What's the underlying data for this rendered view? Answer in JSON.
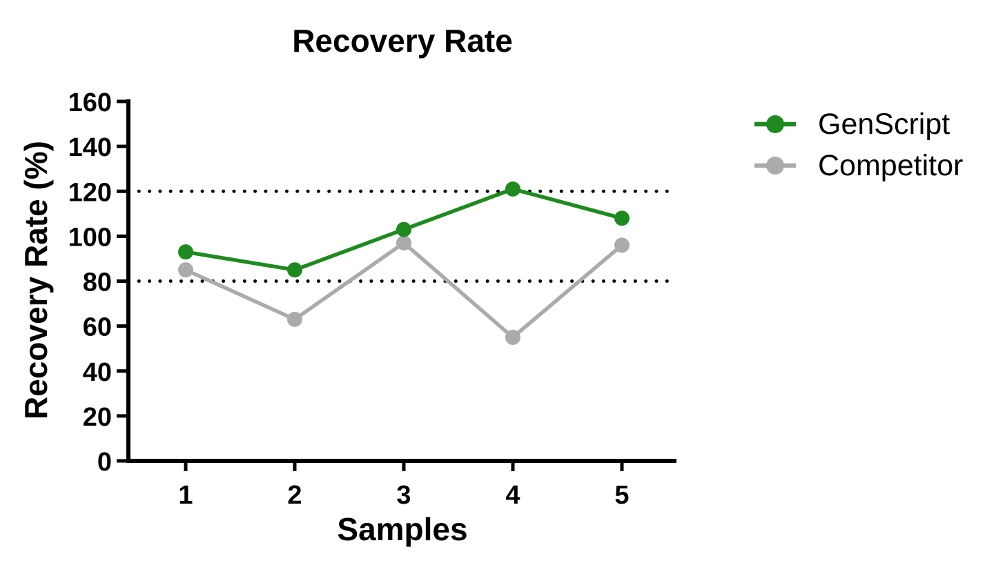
{
  "chart_data": {
    "type": "line",
    "title": "Recovery Rate",
    "xlabel": "Samples",
    "ylabel": "Recovery Rate (%)",
    "categories": [
      1,
      2,
      3,
      4,
      5
    ],
    "series": [
      {
        "name": "GenScript",
        "color": "#1f8a1f",
        "values": [
          93,
          85,
          103,
          121,
          108
        ]
      },
      {
        "name": "Competitor",
        "color": "#ababab",
        "values": [
          85,
          63,
          97,
          55,
          96
        ]
      }
    ],
    "reference_lines": [
      {
        "value": 80,
        "style": "dotted",
        "color": "#000000"
      },
      {
        "value": 120,
        "style": "dotted",
        "color": "#000000"
      }
    ],
    "ylim": [
      0,
      160
    ],
    "yticks": [
      0,
      20,
      40,
      60,
      80,
      100,
      120,
      140,
      160
    ],
    "xticks": [
      1,
      2,
      3,
      4,
      5
    ],
    "grid": false,
    "legend_position": "right",
    "marker": "circle",
    "axis_color": "#000000",
    "background": "#ffffff"
  }
}
